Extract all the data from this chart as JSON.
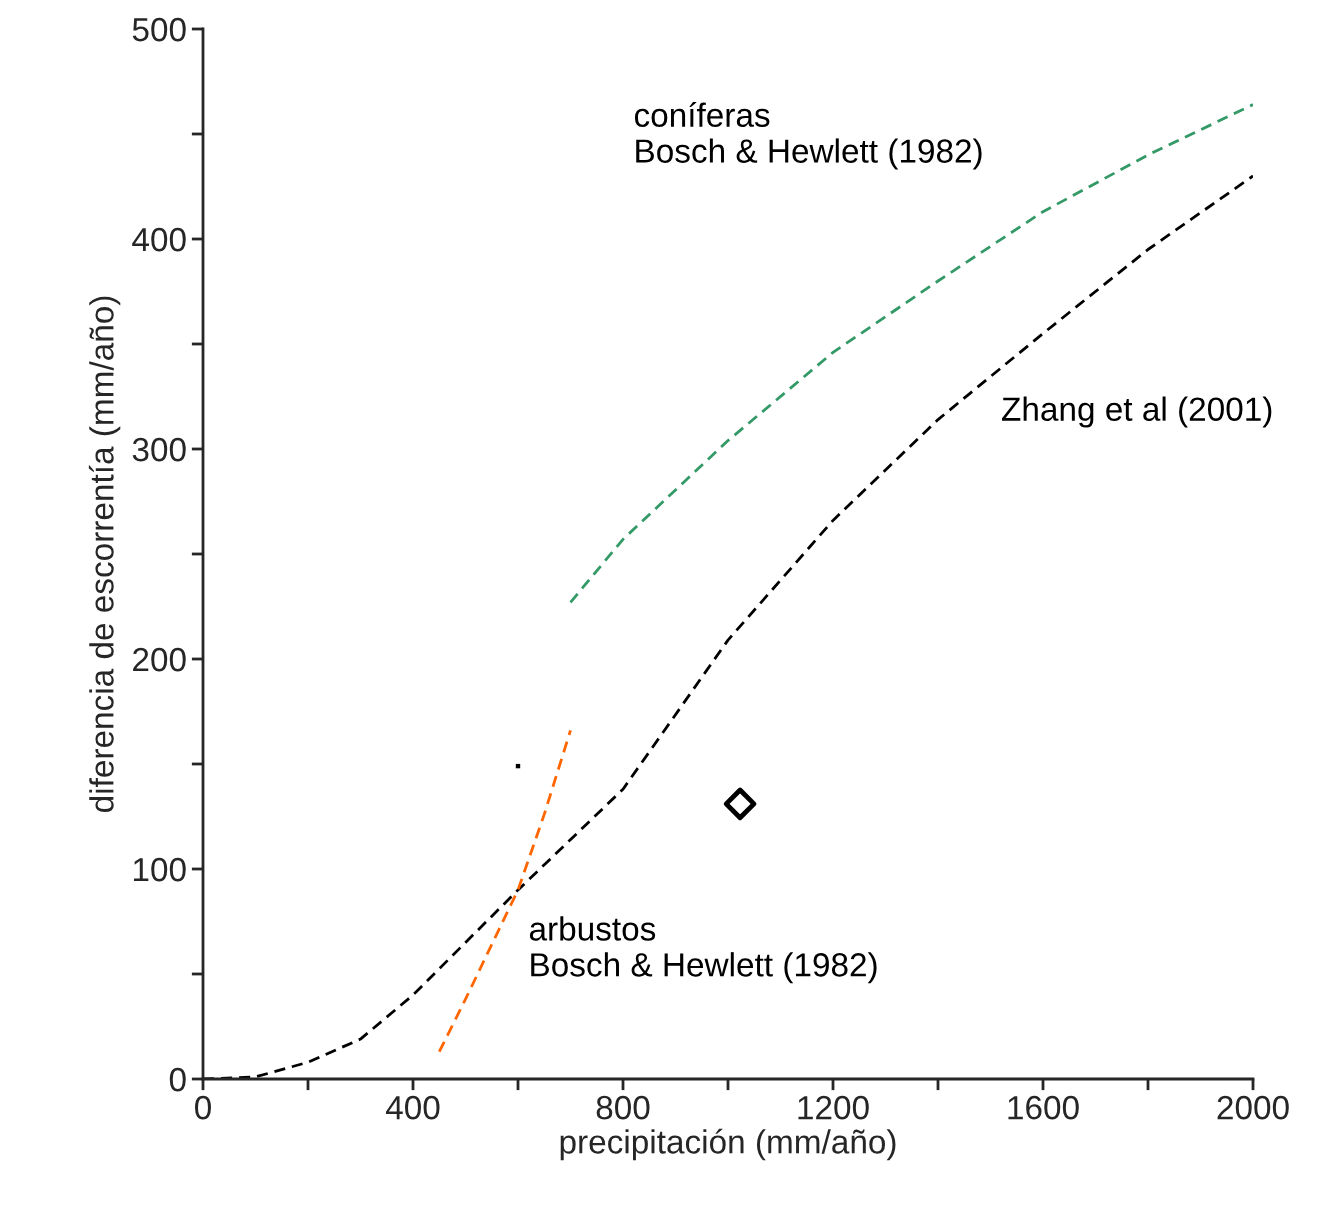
{
  "chart_data": {
    "type": "line",
    "xlabel": "precipitación (mm/año)",
    "ylabel": "diferencia de escorrentía (mm/año)",
    "xlim": [
      0,
      2000
    ],
    "ylim": [
      0,
      500
    ],
    "xticks": [
      0,
      {
        "value": 200,
        "label": null
      },
      400,
      {
        "value": 600,
        "label": null
      },
      800,
      {
        "value": 1000,
        "label": null
      },
      1200,
      {
        "value": 1400,
        "label": null
      },
      1600,
      {
        "value": 1800,
        "label": null
      },
      2000
    ],
    "yticks": [
      0,
      {
        "value": 50,
        "label": null
      },
      100,
      {
        "value": 150,
        "label": null
      },
      200,
      {
        "value": 250,
        "label": null
      },
      300,
      {
        "value": 350,
        "label": null
      },
      400,
      {
        "value": 450,
        "label": null
      },
      500
    ],
    "grid": false,
    "legend": false,
    "line_style": "dashed",
    "marker": "none",
    "series": [
      {
        "name": "coníferas\nBosch & Hewlett (1982)",
        "color": "#339966",
        "x": [
          700,
          800,
          1000,
          1200,
          1400,
          1600,
          1800,
          2000
        ],
        "values": [
          227,
          257,
          304,
          346,
          380,
          413,
          440,
          464
        ]
      },
      {
        "name": "Zhang et al (2001)",
        "color": "#000000",
        "x": [
          0,
          100,
          200,
          300,
          400,
          600,
          800,
          1000,
          1200,
          1400,
          1600,
          1800,
          2000
        ],
        "values": [
          0,
          1,
          8,
          19,
          40,
          90,
          138,
          209,
          266,
          314,
          355,
          395,
          430
        ]
      },
      {
        "name": "arbustos\nBosch & Hewlett (1982)",
        "color": "#ff6600",
        "x": [
          450,
          500,
          600,
          650,
          700
        ],
        "values": [
          13,
          38,
          90,
          126,
          166
        ]
      },
      {
        "type": "scatter",
        "marker": "diamond",
        "color": "#000000",
        "x": [
          1023
        ],
        "values": [
          131
        ]
      },
      {
        "type": "scatter",
        "marker": "square",
        "color": "#000000",
        "x": [
          600
        ],
        "values": [
          149
        ]
      }
    ]
  }
}
